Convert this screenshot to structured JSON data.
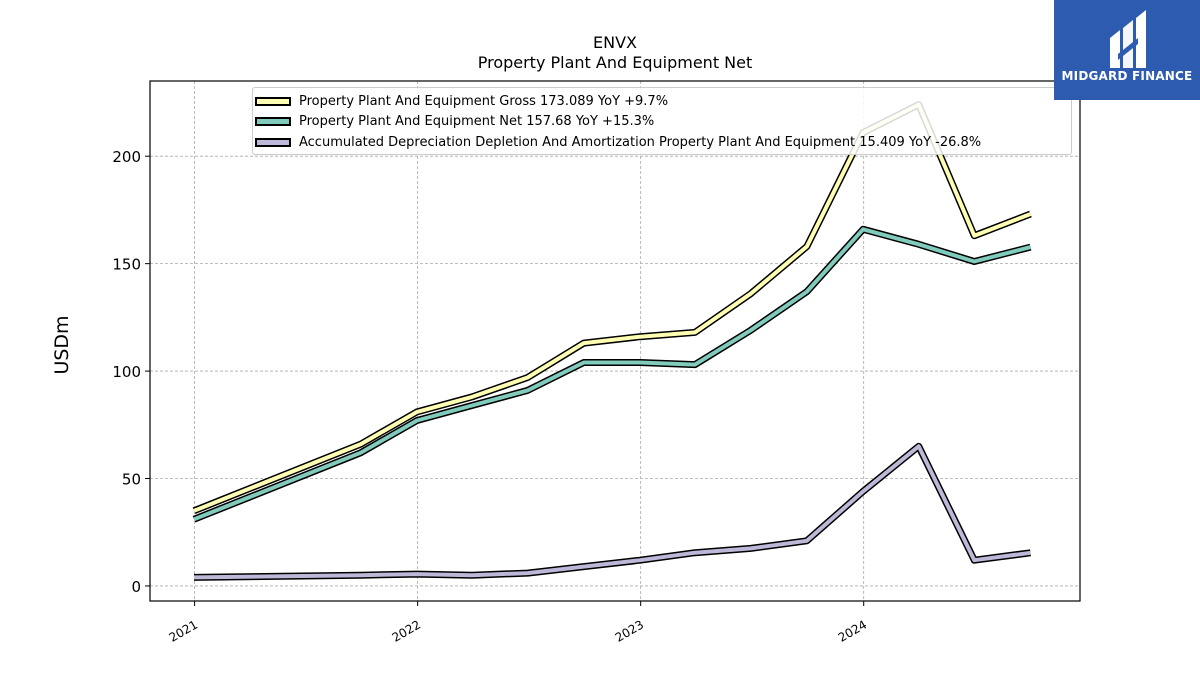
{
  "header": {
    "ticker": "ENVX",
    "title": "Property Plant And Equipment Net"
  },
  "logo": {
    "text": "MIDGARD FINANCE",
    "icon": "midgard-logo-icon",
    "color": "#2c5bb0"
  },
  "chart_data": {
    "type": "line",
    "title": "ENVX\nProperty Plant And Equipment Net",
    "ylabel": "USDm",
    "xlabel": "",
    "ylim": [
      -7,
      235
    ],
    "xlim": [
      "2020-10-20",
      "2024-12-20"
    ],
    "yticks": [
      0,
      50,
      100,
      150,
      200
    ],
    "xticks": [
      "2021",
      "2022",
      "2023",
      "2024"
    ],
    "grid": true,
    "legend_position": "top",
    "x": [
      "2020-12-31",
      "2021-09-30",
      "2021-12-31",
      "2022-03-31",
      "2022-06-30",
      "2022-09-30",
      "2022-12-31",
      "2023-03-31",
      "2023-06-30",
      "2023-09-30",
      "2023-12-31",
      "2024-03-31",
      "2024-06-30",
      "2024-09-30"
    ],
    "series": [
      {
        "name": "Property Plant And Equipment Gross",
        "legend": "Property Plant And Equipment Gross  173.089 YoY +9.7%",
        "color": "#ffffb3",
        "values": [
          35,
          66,
          81,
          88,
          97,
          113,
          116,
          118,
          136,
          158,
          211,
          224,
          163,
          173.089
        ]
      },
      {
        "name": "Property Plant And Equipment Net",
        "legend": "Property Plant And Equipment Net  157.68 YoY +15.3%",
        "color": "#80cbbc",
        "values": [
          31,
          62,
          77,
          84,
          91,
          104,
          104,
          103,
          119,
          137,
          166,
          159,
          151,
          157.68
        ]
      },
      {
        "name": "Accumulated Depreciation Depletion And Amortization Property Plant And Equipment",
        "legend": "Accumulated Depreciation Depletion And Amortization Property Plant And Equipment  15.409 YoY -26.8%",
        "color": "#bcb8d8",
        "values": [
          4,
          5,
          5.5,
          5,
          6,
          9,
          12,
          15.5,
          17.5,
          21,
          44,
          65,
          12,
          15.409
        ]
      }
    ]
  }
}
